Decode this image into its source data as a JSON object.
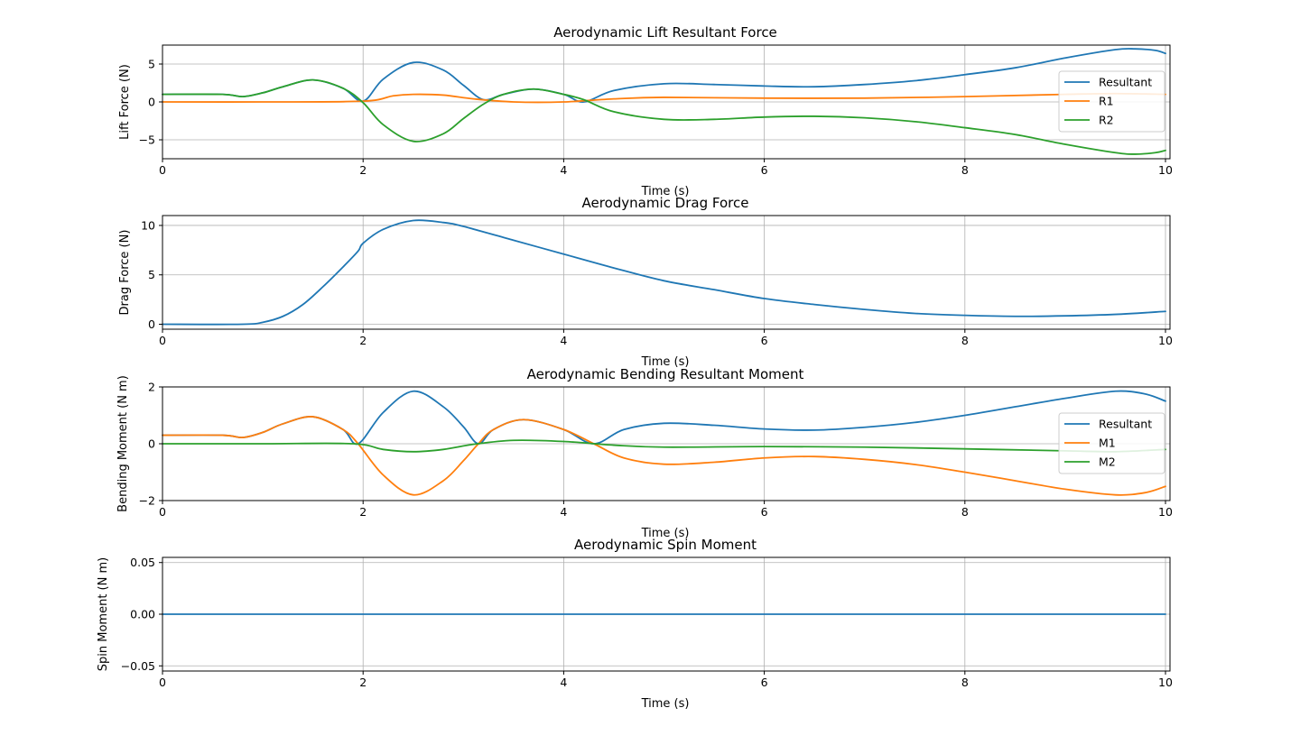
{
  "chart_data": [
    {
      "type": "line",
      "title": "Aerodynamic Lift Resultant Force",
      "xlabel": "Time (s)",
      "ylabel": "Lift Force (N)",
      "xlim": [
        0,
        10
      ],
      "ylim": [
        -7.5,
        7.5
      ],
      "xticks": [
        0,
        2,
        4,
        6,
        8,
        10
      ],
      "yticks": [
        -5,
        0,
        5
      ],
      "grid": true,
      "legend": "right",
      "series": [
        {
          "name": "Resultant",
          "color": "#1f77b4",
          "x": [
            0,
            0.6,
            0.8,
            1.0,
            1.2,
            1.5,
            1.8,
            2.0,
            2.2,
            2.5,
            2.8,
            3.0,
            3.2,
            3.4,
            3.7,
            4.0,
            4.2,
            4.5,
            5.0,
            5.5,
            6.0,
            6.5,
            7.0,
            7.5,
            8.0,
            8.5,
            9.0,
            9.5,
            9.7,
            9.9,
            10.0
          ],
          "y": [
            1.0,
            1.0,
            0.7,
            1.2,
            2.0,
            2.9,
            1.8,
            0.1,
            3.0,
            5.2,
            4.2,
            2.2,
            0.3,
            1.0,
            1.7,
            1.0,
            0.0,
            1.5,
            2.4,
            2.3,
            2.1,
            2.0,
            2.3,
            2.8,
            3.6,
            4.5,
            5.8,
            6.9,
            7.0,
            6.8,
            6.4
          ]
        },
        {
          "name": "R1",
          "color": "#ff7f0e",
          "x": [
            0,
            1.0,
            2.0,
            2.3,
            2.5,
            2.8,
            3.1,
            3.5,
            4.0,
            4.5,
            5.0,
            6.0,
            7.0,
            8.0,
            9.0,
            9.5,
            10.0
          ],
          "y": [
            0.0,
            0.0,
            0.1,
            0.8,
            1.0,
            0.9,
            0.4,
            0.0,
            0.0,
            0.4,
            0.6,
            0.5,
            0.5,
            0.7,
            1.0,
            1.1,
            1.0
          ]
        },
        {
          "name": "R2",
          "color": "#2ca02c",
          "x": [
            0,
            0.6,
            0.8,
            1.0,
            1.2,
            1.5,
            1.8,
            2.0,
            2.2,
            2.5,
            2.8,
            3.0,
            3.2,
            3.4,
            3.7,
            4.0,
            4.2,
            4.5,
            5.0,
            5.5,
            6.0,
            6.5,
            7.0,
            7.5,
            8.0,
            8.5,
            9.0,
            9.5,
            9.7,
            9.9,
            10.0
          ],
          "y": [
            1.0,
            1.0,
            0.7,
            1.2,
            2.0,
            2.9,
            1.8,
            -0.1,
            -3.0,
            -5.2,
            -4.2,
            -2.2,
            -0.3,
            1.0,
            1.7,
            1.0,
            0.3,
            -1.3,
            -2.3,
            -2.3,
            -2.0,
            -1.9,
            -2.1,
            -2.6,
            -3.4,
            -4.3,
            -5.6,
            -6.7,
            -6.9,
            -6.7,
            -6.4
          ]
        }
      ]
    },
    {
      "type": "line",
      "title": "Aerodynamic Drag Force",
      "xlabel": "Time (s)",
      "ylabel": "Drag Force (N)",
      "xlim": [
        0,
        10
      ],
      "ylim": [
        -0.5,
        11
      ],
      "xticks": [
        0,
        2,
        4,
        6,
        8,
        10
      ],
      "yticks": [
        0,
        5,
        10
      ],
      "grid": true,
      "series": [
        {
          "color": "#1f77b4",
          "x": [
            0,
            0.8,
            1.0,
            1.2,
            1.4,
            1.6,
            1.8,
            1.95,
            2.0,
            2.2,
            2.5,
            2.8,
            3.0,
            3.5,
            4.0,
            4.5,
            5.0,
            5.5,
            6.0,
            6.5,
            7.0,
            7.5,
            8.0,
            8.5,
            9.0,
            9.5,
            10.0
          ],
          "y": [
            0.0,
            0.0,
            0.2,
            0.8,
            2.0,
            3.8,
            5.8,
            7.4,
            8.2,
            9.6,
            10.5,
            10.3,
            9.9,
            8.5,
            7.1,
            5.7,
            4.4,
            3.5,
            2.6,
            2.0,
            1.5,
            1.1,
            0.9,
            0.8,
            0.85,
            1.0,
            1.3
          ]
        }
      ]
    },
    {
      "type": "line",
      "title": "Aerodynamic Bending Resultant Moment",
      "xlabel": "Time (s)",
      "ylabel": "Bending Moment (N m)",
      "xlim": [
        0,
        10
      ],
      "ylim": [
        -2,
        2
      ],
      "xticks": [
        0,
        2,
        4,
        6,
        8,
        10
      ],
      "yticks": [
        -2,
        0,
        2
      ],
      "grid": true,
      "legend": "right",
      "series": [
        {
          "name": "Resultant",
          "color": "#1f77b4",
          "x": [
            0,
            0.6,
            0.8,
            1.0,
            1.2,
            1.5,
            1.8,
            1.95,
            2.2,
            2.5,
            2.8,
            3.0,
            3.15,
            3.3,
            3.6,
            4.0,
            4.3,
            4.6,
            5.0,
            5.5,
            6.0,
            6.5,
            7.0,
            7.5,
            8.0,
            8.5,
            9.0,
            9.5,
            9.8,
            10.0
          ],
          "y": [
            0.3,
            0.3,
            0.22,
            0.4,
            0.7,
            0.95,
            0.5,
            0.0,
            1.1,
            1.85,
            1.3,
            0.6,
            0.0,
            0.5,
            0.85,
            0.5,
            0.0,
            0.5,
            0.72,
            0.65,
            0.52,
            0.48,
            0.58,
            0.75,
            1.0,
            1.3,
            1.6,
            1.85,
            1.75,
            1.5
          ]
        },
        {
          "name": "M1",
          "color": "#ff7f0e",
          "x": [
            0,
            0.6,
            0.8,
            1.0,
            1.2,
            1.5,
            1.8,
            1.95,
            2.2,
            2.5,
            2.8,
            3.0,
            3.15,
            3.3,
            3.6,
            4.0,
            4.3,
            4.6,
            5.0,
            5.5,
            6.0,
            6.5,
            7.0,
            7.5,
            8.0,
            8.5,
            9.0,
            9.5,
            9.8,
            10.0
          ],
          "y": [
            0.3,
            0.3,
            0.22,
            0.4,
            0.7,
            0.95,
            0.5,
            0.0,
            -1.1,
            -1.8,
            -1.3,
            -0.6,
            0.0,
            0.5,
            0.85,
            0.5,
            0.0,
            -0.5,
            -0.72,
            -0.65,
            -0.5,
            -0.45,
            -0.55,
            -0.73,
            -1.0,
            -1.3,
            -1.6,
            -1.8,
            -1.72,
            -1.5
          ]
        },
        {
          "name": "M2",
          "color": "#2ca02c",
          "x": [
            0,
            1.0,
            1.9,
            2.2,
            2.5,
            2.8,
            3.1,
            3.5,
            4.0,
            4.5,
            5.0,
            6.0,
            7.0,
            8.0,
            9.0,
            9.5,
            10.0
          ],
          "y": [
            0.0,
            0.0,
            0.0,
            -0.2,
            -0.28,
            -0.2,
            -0.02,
            0.12,
            0.08,
            -0.05,
            -0.12,
            -0.1,
            -0.12,
            -0.18,
            -0.25,
            -0.28,
            -0.2
          ]
        }
      ]
    },
    {
      "type": "line",
      "title": "Aerodynamic Spin Moment",
      "xlabel": "Time (s)",
      "ylabel": "Spin Moment (N m)",
      "xlim": [
        0,
        10
      ],
      "ylim": [
        -0.055,
        0.055
      ],
      "xticks": [
        0,
        2,
        4,
        6,
        8,
        10
      ],
      "yticks": [
        -0.05,
        0.0,
        0.05
      ],
      "ytick_labels": [
        "−0.05",
        "0.00",
        "0.05"
      ],
      "grid": true,
      "series": [
        {
          "color": "#1f77b4",
          "x": [
            0,
            10
          ],
          "y": [
            0,
            0
          ]
        }
      ]
    }
  ]
}
